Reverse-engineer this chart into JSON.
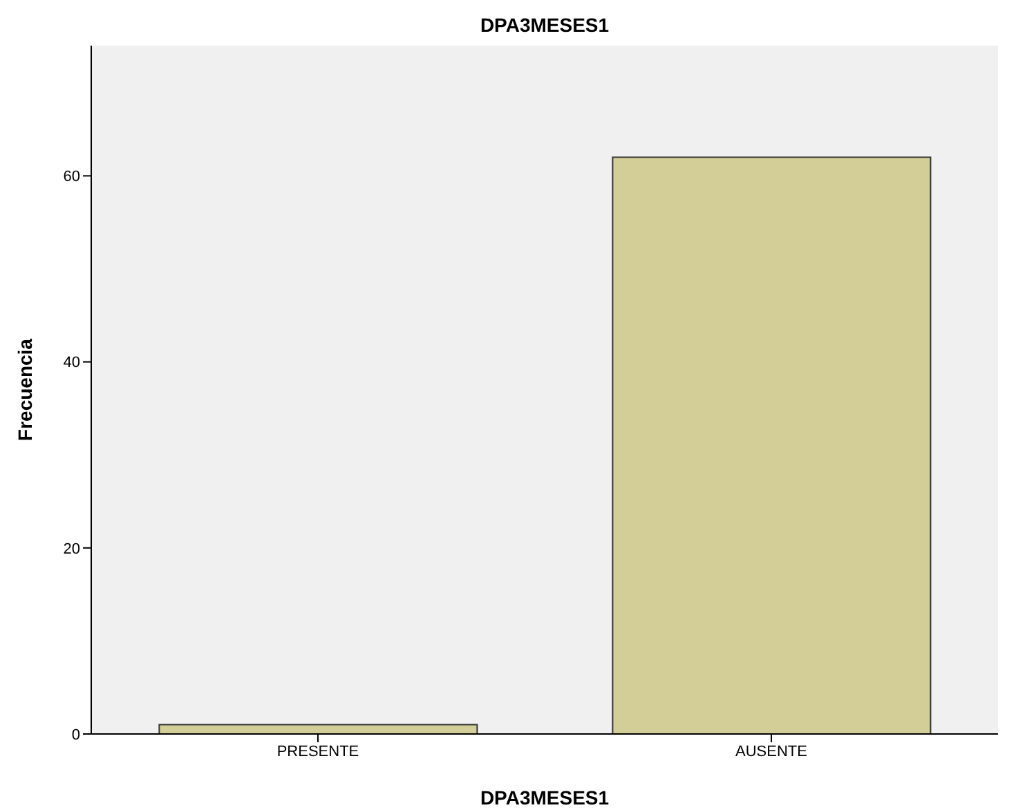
{
  "chart_data": {
    "type": "bar",
    "title": "DPA3MESES1",
    "xlabel": "DPA3MESES1",
    "ylabel": "Frecuencia",
    "categories": [
      "PRESENTE",
      "AUSENTE"
    ],
    "values": [
      1,
      62
    ],
    "color": "#d3ce97",
    "ylim": [
      0,
      74
    ],
    "yticks": [
      0,
      20,
      40,
      60
    ],
    "grid": false
  }
}
